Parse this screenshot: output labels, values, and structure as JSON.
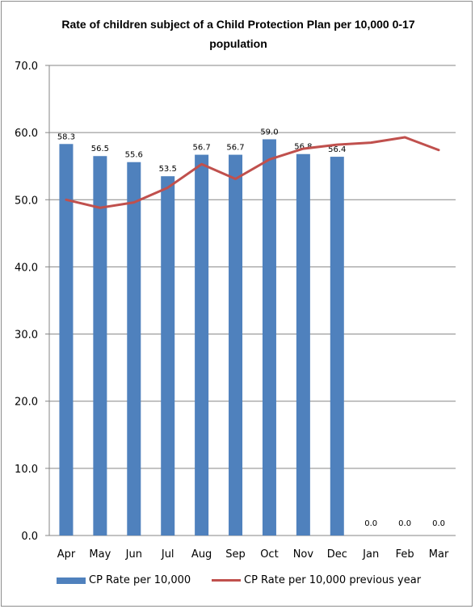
{
  "chart_data": {
    "type": "bar",
    "title": "Rate of children subject of a Child Protection Plan per 10,000 0-17 population",
    "categories": [
      "Apr",
      "May",
      "Jun",
      "Jul",
      "Aug",
      "Sep",
      "Oct",
      "Nov",
      "Dec",
      "Jan",
      "Feb",
      "Mar"
    ],
    "series": [
      {
        "name": "CP Rate per 10,000",
        "type": "bar",
        "color": "#4f81bd",
        "values": [
          58.3,
          56.5,
          55.6,
          53.5,
          56.7,
          56.7,
          59.0,
          56.8,
          56.4,
          0.0,
          0.0,
          0.0
        ],
        "labels": [
          "58.3",
          "56.5",
          "55.6",
          "53.5",
          "56.7",
          "56.7",
          "59.0",
          "56.8",
          "56.4",
          "0.0",
          "0.0",
          "0.0"
        ]
      },
      {
        "name": "CP Rate per 10,000 previous year",
        "type": "line",
        "color": "#c0504d",
        "values": [
          50.0,
          48.8,
          49.6,
          51.8,
          55.3,
          53.1,
          56.0,
          57.6,
          58.2,
          58.5,
          59.3,
          57.4
        ]
      }
    ],
    "ylim": [
      0,
      70
    ],
    "yticks": [
      "0.0",
      "10.0",
      "20.0",
      "30.0",
      "40.0",
      "50.0",
      "60.0",
      "70.0"
    ],
    "grid": true,
    "legend_position": "bottom"
  }
}
